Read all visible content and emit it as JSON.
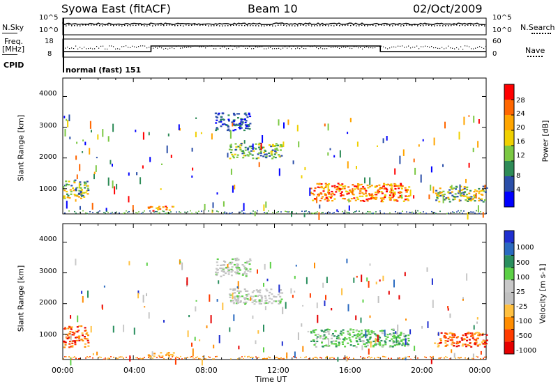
{
  "header": {
    "station": "Syowa East (fitACF)",
    "beam": "Beam 10",
    "date": "02/Oct/2009"
  },
  "strip_labels": {
    "nsky": "N.Sky",
    "nsearch": "N.Search",
    "freq_line1": "Freq.",
    "freq_line2": "[MHz]",
    "nave": "Nave",
    "cpid": "CPID",
    "cpid_value": "normal (fast) 151"
  },
  "axes": {
    "ylabel": "Slant Range [km]",
    "xlabel": "Time UT",
    "x_ticks": [
      "00:00",
      "04:00",
      "08:00",
      "12:00",
      "16:00",
      "20:00",
      "00:00"
    ],
    "y_ticks": [
      "1000",
      "2000",
      "3000",
      "4000"
    ],
    "nsky_ticks": [
      "10^5",
      "10^0"
    ],
    "nsearch_ticks": [
      "10^5",
      "10^0"
    ],
    "freq_ticks": [
      "18",
      "8"
    ],
    "nave_ticks": [
      "60",
      "0"
    ]
  },
  "colors": {
    "power": [
      "#0000ff",
      "#2a4ea8",
      "#2e8b57",
      "#7bc843",
      "#f0d000",
      "#ffa500",
      "#ff6600",
      "#ff0000"
    ],
    "velocity": [
      "#e60000",
      "#ff3c00",
      "#ff8c00",
      "#ffc040",
      "#c0c0c0",
      "#c8c8c8",
      "#5cd046",
      "#2a8f5e",
      "#2a6ac0",
      "#1f2fd0"
    ]
  },
  "chart_data": [
    {
      "type": "heatmap",
      "panel": "power",
      "xlabel": "Time UT",
      "ylabel": "Slant Range [km]",
      "xlim": [
        0,
        24
      ],
      "ylim": [
        180,
        4600
      ],
      "colorbar_label": "Power [dB]",
      "colorbar_ticks": [
        "28",
        "24",
        "20",
        "16",
        "12",
        "8",
        "4"
      ],
      "regions": [
        {
          "t": [
            0.0,
            1.4
          ],
          "r": [
            700,
            1300
          ],
          "level": "mixed"
        },
        {
          "t": [
            4.8,
            6.3
          ],
          "r": [
            300,
            450
          ],
          "level": "high"
        },
        {
          "t": [
            8.6,
            10.6
          ],
          "r": [
            2900,
            3500
          ],
          "level": "low"
        },
        {
          "t": [
            9.4,
            12.4
          ],
          "r": [
            2000,
            2500
          ],
          "level": "mid"
        },
        {
          "t": [
            14.0,
            19.6
          ],
          "r": [
            600,
            1200
          ],
          "level": "high"
        },
        {
          "t": [
            21.0,
            24.0
          ],
          "r": [
            600,
            1100
          ],
          "level": "mixed"
        }
      ]
    },
    {
      "type": "heatmap",
      "panel": "velocity",
      "xlabel": "Time UT",
      "ylabel": "Slant Range [km]",
      "xlim": [
        0,
        24
      ],
      "ylim": [
        180,
        4600
      ],
      "colorbar_label": "Velocity [m s-1]",
      "colorbar_ticks": [
        "1000",
        "500",
        "100",
        "25",
        "-25",
        "-100",
        "-500",
        "-1000"
      ],
      "regions": [
        {
          "t": [
            0.0,
            1.4
          ],
          "r": [
            600,
            1300
          ],
          "level": "negative"
        },
        {
          "t": [
            4.8,
            6.3
          ],
          "r": [
            300,
            450
          ],
          "level": "slightly-negative"
        },
        {
          "t": [
            8.6,
            10.6
          ],
          "r": [
            2900,
            3500
          ],
          "level": "near-zero"
        },
        {
          "t": [
            9.4,
            12.4
          ],
          "r": [
            2000,
            2500
          ],
          "level": "near-zero"
        },
        {
          "t": [
            14.0,
            19.6
          ],
          "r": [
            600,
            1200
          ],
          "level": "positive"
        },
        {
          "t": [
            21.0,
            24.0
          ],
          "r": [
            600,
            1100
          ],
          "level": "negative"
        }
      ]
    }
  ]
}
